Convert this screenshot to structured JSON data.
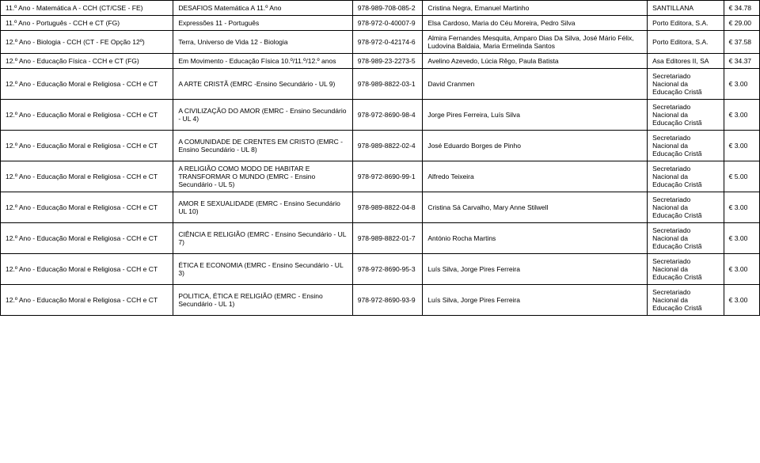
{
  "rows": [
    {
      "subject": "11.º Ano - Matemática A - CCH (CT/CSE - FE)",
      "book": "DESAFIOS Matemática A 11.º Ano",
      "isbn": "978-989-708-085-2",
      "author": "Cristina Negra, Emanuel Martinho",
      "publisher": "SANTILLANA",
      "price": "€ 34.78"
    },
    {
      "subject": "11.º Ano - Português - CCH e CT (FG)",
      "book": "Expressões 11 - Português",
      "isbn": "978-972-0-40007-9",
      "author": "Elsa Cardoso, Maria do Céu Moreira, Pedro Silva",
      "publisher": "Porto Editora, S.A.",
      "price": "€ 29.00"
    },
    {
      "subject": "12.º Ano - Biologia - CCH (CT - FE Opção 12º)",
      "book": "Terra, Universo de Vida 12 - Biologia",
      "isbn": "978-972-0-42174-6",
      "author": "Almira Fernandes Mesquita, Amparo Dias Da Silva, José Mário Félix, Ludovina Baldaia, Maria Ermelinda Santos",
      "publisher": "Porto Editora, S.A.",
      "price": "€ 37.58"
    },
    {
      "subject": "12.º Ano - Educação Física - CCH e CT (FG)",
      "book": "Em Movimento - Educação Física 10.º/11.º/12.º anos",
      "isbn": "978-989-23-2273-5",
      "author": "Avelino Azevedo, Lúcia Rêgo, Paula Batista",
      "publisher": "Asa Editores II, SA",
      "price": "€ 34.37"
    },
    {
      "subject": "12.º Ano - Educação Moral e Religiosa - CCH e CT",
      "book": "A ARTE CRISTÃ (EMRC -Ensino Secundário - UL 9)",
      "isbn": "978-989-8822-03-1",
      "author": "David Cranmen",
      "publisher": "Secretariado Nacional da Educação Cristã",
      "price": "€ 3.00"
    },
    {
      "subject": "12.º Ano - Educação Moral e Religiosa - CCH e CT",
      "book": "A CIVILIZAÇÃO DO AMOR (EMRC - Ensino Secundário - UL 4)",
      "isbn": "978-972-8690-98-4",
      "author": "Jorge Pires Ferreira, Luís Silva",
      "publisher": "Secretariado Nacional da Educação Cristã",
      "price": "€ 3.00"
    },
    {
      "subject": "12.º Ano - Educação Moral e Religiosa - CCH e CT",
      "book": "A COMUNIDADE DE CRENTES EM CRISTO (EMRC - Ensino Secundário - UL 8)",
      "isbn": "978-989-8822-02-4",
      "author": "José Eduardo Borges de Pinho",
      "publisher": "Secretariado Nacional da Educação Cristã",
      "price": "€ 3.00"
    },
    {
      "subject": "12.º Ano - Educação Moral e Religiosa - CCH e CT",
      "book": "A RELIGIÃO COMO MODO DE HABITAR E TRANSFORMAR O MUNDO (EMRC - Ensino Secundário - UL 5)",
      "isbn": "978-972-8690-99-1",
      "author": "Alfredo Teixeira",
      "publisher": "Secretariado Nacional da Educação Cristã",
      "price": "€ 5.00"
    },
    {
      "subject": "12.º Ano - Educação Moral e Religiosa - CCH e CT",
      "book": "AMOR E SEXUALIDADE (EMRC - Ensino Secundário UL 10)",
      "isbn": "978-989-8822-04-8",
      "author": "Cristina Sá Carvalho, Mary Anne Stilwell",
      "publisher": "Secretariado Nacional da Educação Cristã",
      "price": "€ 3.00"
    },
    {
      "subject": "12.º Ano - Educação Moral e Religiosa - CCH e CT",
      "book": "CIÊNCIA E RELIGIÃO (EMRC - Ensino Secundário - UL 7)",
      "isbn": "978-989-8822-01-7",
      "author": "António Rocha Martins",
      "publisher": "Secretariado Nacional da Educação Cristã",
      "price": "€ 3.00"
    },
    {
      "subject": "12.º Ano - Educação Moral e Religiosa - CCH e CT",
      "book": "ÉTICA E ECONOMIA (EMRC - Ensino Secundário - UL 3)",
      "isbn": "978-972-8690-95-3",
      "author": "Luís Silva, Jorge Pires Ferreira",
      "publisher": "Secretariado Nacional da Educação Cristã",
      "price": "€ 3.00"
    },
    {
      "subject": "12.º Ano - Educação Moral e Religiosa - CCH e CT",
      "book": "POLITICA, ÉTICA E RELIGIÃO (EMRC - Ensino Secundário - UL 1)",
      "isbn": "978-972-8690-93-9",
      "author": "Luís Silva, Jorge Pires Ferreira",
      "publisher": "Secretariado Nacional da Educação Cristã",
      "price": "€ 3.00"
    }
  ]
}
